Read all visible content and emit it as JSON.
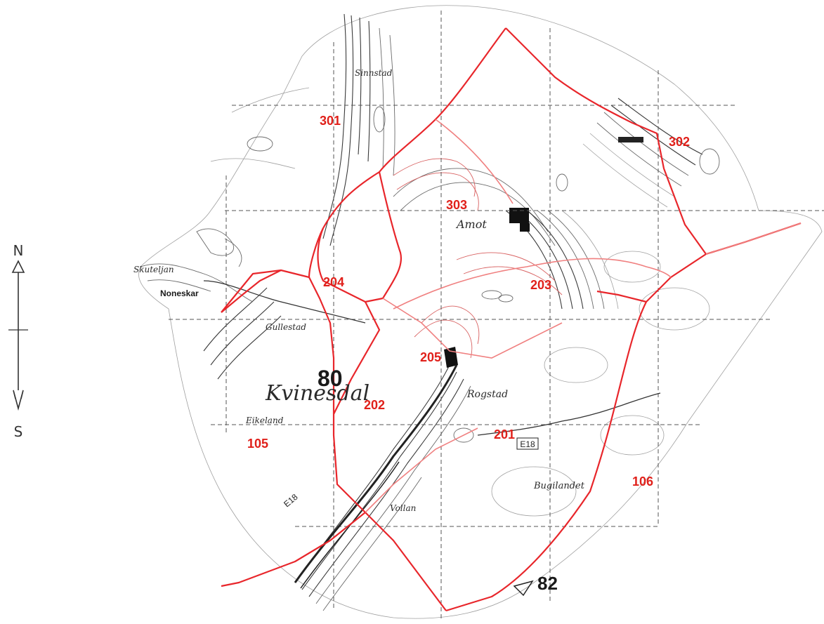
{
  "compass": {
    "north": "N",
    "south": "S"
  },
  "zones": [
    {
      "id": "301",
      "label": "301"
    },
    {
      "id": "302",
      "label": "302"
    },
    {
      "id": "303",
      "label": "303"
    },
    {
      "id": "204",
      "label": "204"
    },
    {
      "id": "203",
      "label": "203"
    },
    {
      "id": "205",
      "label": "205"
    },
    {
      "id": "202",
      "label": "202"
    },
    {
      "id": "201",
      "label": "201"
    },
    {
      "id": "105",
      "label": "105"
    },
    {
      "id": "106",
      "label": "106"
    }
  ],
  "place_names": {
    "kvinesdal": "Kvinesdal",
    "noneskar": "Noneskar",
    "skuteljan": "Skuteljan",
    "gullestad": "Gullestad",
    "eikeland": "Eikeland",
    "rogstad": "Rogstad",
    "bugilandet": "Bugilandet",
    "amot": "Amot",
    "sinnstad": "Sinnstad",
    "vollan": "Vollan"
  },
  "map_numbers": {
    "n80": "80",
    "n82": "82"
  },
  "road_signs": {
    "e18_a": "E18",
    "e18_b": "E18"
  },
  "colors": {
    "boundary": "#e8262b",
    "label": "#e0201a",
    "contour": "#3a3a3a"
  }
}
